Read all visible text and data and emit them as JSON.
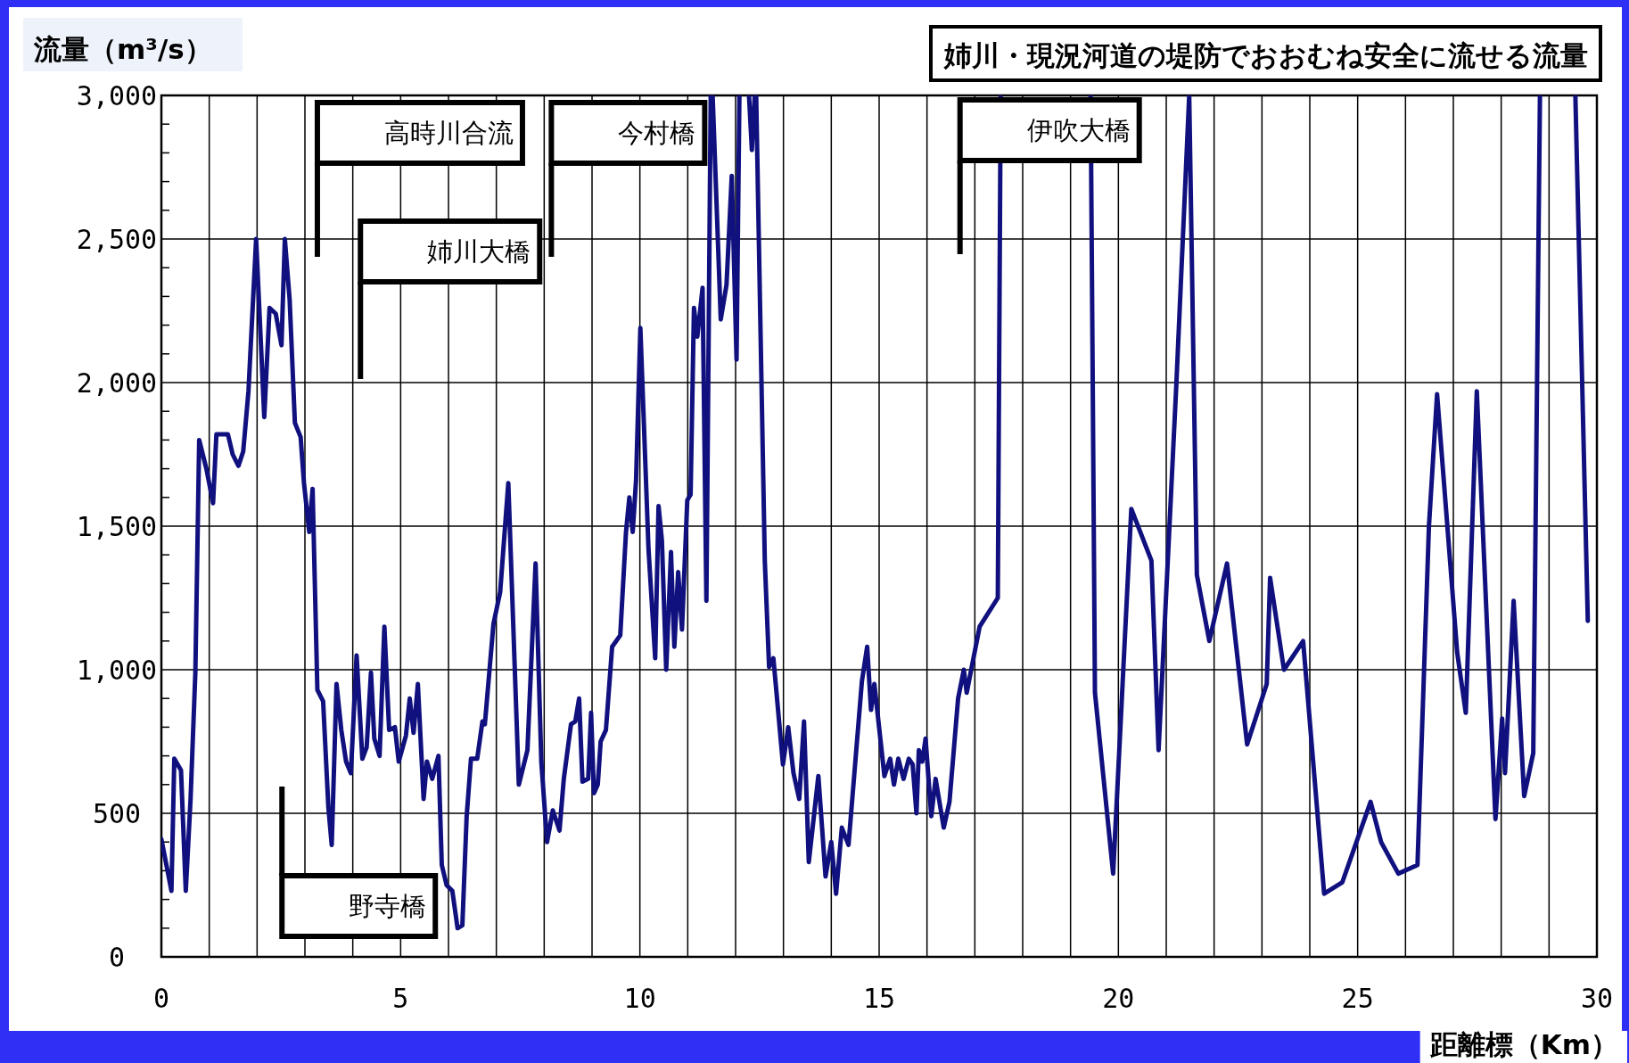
{
  "chart_data": {
    "type": "line",
    "title": "姉川・現況河道の堤防でおおむね安全に流せる流量",
    "xlabel": "距離標（Km）",
    "ylabel": "流量（m³/s）",
    "xlim": [
      0,
      30
    ],
    "ylim": [
      0,
      3000
    ],
    "xticks": [
      0,
      {
        "value": 1,
        "label": null
      },
      {
        "value": 2,
        "label": null
      },
      {
        "value": 3,
        "label": null
      },
      {
        "value": 4,
        "label": null
      },
      5,
      {
        "value": 6,
        "label": null
      },
      {
        "value": 7,
        "label": null
      },
      {
        "value": 8,
        "label": null
      },
      {
        "value": 9,
        "label": null
      },
      10,
      {
        "value": 11,
        "label": null
      },
      {
        "value": 12,
        "label": null
      },
      {
        "value": 13,
        "label": null
      },
      {
        "value": 14,
        "label": null
      },
      15,
      {
        "value": 16,
        "label": null
      },
      {
        "value": 17,
        "label": null
      },
      {
        "value": 18,
        "label": null
      },
      {
        "value": 19,
        "label": null
      },
      20,
      {
        "value": 21,
        "label": null
      },
      {
        "value": 22,
        "label": null
      },
      {
        "value": 23,
        "label": null
      },
      {
        "value": 24,
        "label": null
      },
      25,
      {
        "value": 26,
        "label": null
      },
      {
        "value": 27,
        "label": null
      },
      {
        "value": 28,
        "label": null
      },
      {
        "value": 29,
        "label": null
      },
      30
    ],
    "yticks": [
      0,
      {
        "value": 100,
        "label": null
      },
      {
        "value": 200,
        "label": null
      },
      {
        "value": 300,
        "label": null
      },
      {
        "value": 400,
        "label": null
      },
      500,
      {
        "value": 600,
        "label": null
      },
      {
        "value": 700,
        "label": null
      },
      {
        "value": 800,
        "label": null
      },
      {
        "value": 900,
        "label": null
      },
      {
        "value": 1000,
        "label": "1,000"
      },
      {
        "value": 1100,
        "label": null
      },
      {
        "value": 1200,
        "label": null
      },
      {
        "value": 1300,
        "label": null
      },
      {
        "value": 1400,
        "label": null
      },
      {
        "value": 1500,
        "label": "1,500"
      },
      {
        "value": 1600,
        "label": null
      },
      {
        "value": 1700,
        "label": null
      },
      {
        "value": 1800,
        "label": null
      },
      {
        "value": 1900,
        "label": null
      },
      {
        "value": 2000,
        "label": "2,000"
      },
      {
        "value": 2100,
        "label": null
      },
      {
        "value": 2200,
        "label": null
      },
      {
        "value": 2300,
        "label": null
      },
      {
        "value": 2400,
        "label": null
      },
      {
        "value": 2500,
        "label": "2,500"
      },
      {
        "value": 2600,
        "label": null
      },
      {
        "value": 2700,
        "label": null
      },
      {
        "value": 2800,
        "label": null
      },
      {
        "value": 2900,
        "label": null
      },
      {
        "value": 3000,
        "label": "3,000"
      }
    ],
    "grid": true,
    "marker": "none",
    "line_style": "solid",
    "series": [
      {
        "color": "#10107f",
        "x": [
          0,
          0.21,
          0.27,
          0.41,
          0.51,
          0.61,
          0.71,
          0.79,
          0.94,
          1.08,
          1.15,
          1.39,
          1.49,
          1.61,
          1.71,
          1.82,
          1.98,
          2.15,
          2.26,
          2.39,
          2.51,
          2.58,
          2.68,
          2.79,
          2.91,
          2.98,
          3.09,
          3.16,
          3.26,
          3.38,
          3.49,
          3.56,
          3.66,
          3.76,
          3.86,
          3.96,
          4.08,
          4.2,
          4.29,
          4.38,
          4.45,
          4.56,
          4.66,
          4.76,
          4.88,
          4.96,
          5.11,
          5.19,
          5.27,
          5.36,
          5.48,
          5.55,
          5.66,
          5.79,
          5.86,
          5.96,
          6.08,
          6.19,
          6.29,
          6.38,
          6.47,
          6.6,
          6.71,
          6.76,
          6.94,
          7.08,
          7.25,
          7.47,
          7.65,
          7.82,
          7.94,
          8.06,
          8.18,
          8.32,
          8.41,
          8.56,
          8.65,
          8.73,
          8.8,
          8.92,
          8.98,
          9.04,
          9.12,
          9.18,
          9.29,
          9.42,
          9.59,
          9.71,
          9.78,
          9.85,
          9.92,
          10.01,
          10.18,
          10.32,
          10.39,
          10.46,
          10.55,
          10.65,
          10.72,
          10.8,
          10.88,
          10.99,
          11.06,
          11.13,
          11.2,
          11.31,
          11.39,
          11.48,
          11.52,
          11.69,
          11.81,
          11.92,
          12.02,
          12.08,
          12.28,
          12.34,
          12.4,
          12.43,
          12.61,
          12.7,
          12.79,
          12.99,
          13.1,
          13.21,
          13.33,
          13.43,
          13.53,
          13.73,
          13.88,
          14.0,
          14.1,
          14.22,
          14.36,
          14.64,
          14.75,
          14.83,
          14.9,
          15.11,
          15.23,
          15.31,
          15.4,
          15.51,
          15.62,
          15.7,
          15.78,
          15.83,
          15.9,
          15.97,
          16.09,
          16.18,
          16.35,
          16.47,
          16.65,
          16.77,
          16.83,
          17.1,
          17.48,
          17.54,
          19.42,
          19.51,
          19.89,
          20.27,
          20.69,
          20.84,
          21.21,
          21.48,
          21.64,
          21.9,
          22.27,
          22.69,
          23.1,
          23.17,
          23.46,
          23.86,
          24.3,
          24.68,
          25.27,
          25.49,
          25.85,
          26.25,
          26.49,
          26.66,
          27.08,
          27.26,
          27.49,
          27.88,
          28.02,
          28.08,
          28.26,
          28.48,
          28.67,
          28.81,
          29.55,
          29.81
        ],
        "values": [
          410,
          230,
          690,
          650,
          230,
          550,
          990,
          1800,
          1700,
          1580,
          1820,
          1820,
          1750,
          1710,
          1760,
          1970,
          2500,
          1880,
          2260,
          2240,
          2130,
          2500,
          2290,
          1860,
          1810,
          1650,
          1480,
          1630,
          930,
          890,
          520,
          390,
          950,
          790,
          680,
          640,
          1050,
          690,
          730,
          990,
          760,
          700,
          1150,
          790,
          800,
          680,
          770,
          900,
          780,
          950,
          550,
          680,
          620,
          700,
          320,
          250,
          230,
          100,
          110,
          490,
          690,
          690,
          820,
          810,
          1160,
          1270,
          1650,
          600,
          720,
          1370,
          680,
          400,
          510,
          440,
          620,
          810,
          820,
          900,
          610,
          620,
          850,
          570,
          600,
          750,
          790,
          1080,
          1120,
          1480,
          1600,
          1480,
          1660,
          2190,
          1420,
          1040,
          1570,
          1450,
          1000,
          1410,
          1080,
          1340,
          1140,
          1590,
          1610,
          2260,
          2160,
          2330,
          1240,
          3000,
          3000,
          2220,
          2340,
          2720,
          2080,
          3000,
          3000,
          2810,
          3000,
          3000,
          1380,
          1010,
          1040,
          670,
          800,
          640,
          550,
          820,
          330,
          630,
          280,
          400,
          220,
          450,
          390,
          960,
          1080,
          860,
          950,
          630,
          690,
          600,
          690,
          620,
          690,
          670,
          500,
          720,
          680,
          760,
          490,
          620,
          450,
          540,
          900,
          1000,
          920,
          1150,
          1250,
          3000,
          3000,
          920,
          290,
          1560,
          1380,
          720,
          1990,
          3000,
          1330,
          1100,
          1370,
          740,
          950,
          1320,
          1000,
          1100,
          220,
          260,
          540,
          400,
          290,
          320,
          1500,
          1960,
          1060,
          850,
          1970,
          480,
          830,
          640,
          1240,
          560,
          710,
          3000,
          3000,
          1170
        ]
      }
    ],
    "ref_lines": [
      {
        "axis": "x",
        "value": 3.26,
        "label": "高時川合流",
        "color": "#000000"
      },
      {
        "axis": "x",
        "value": 4.16,
        "label": "姉川大橋",
        "color": "#000000"
      },
      {
        "axis": "x",
        "value": 8.15,
        "label": "今村橋",
        "color": "#000000"
      },
      {
        "axis": "x",
        "value": 16.69,
        "label": "伊吹大橋",
        "color": "#000000"
      },
      {
        "axis": "x",
        "value": 2.52,
        "label": "野寺橋",
        "color": "#000000"
      }
    ]
  }
}
